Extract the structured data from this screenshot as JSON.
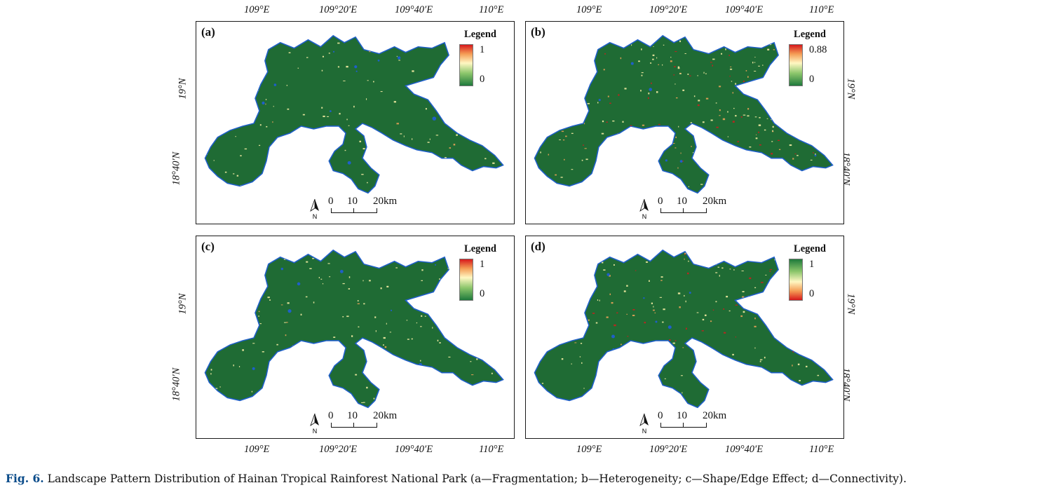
{
  "caption": {
    "label": "Fig. 6.",
    "text": "Landscape Pattern Distribution of Hainan Tropical Rainforest National Park (a—Fragmentation; b—Heterogeneity; c—Shape/Edge Effect; d—Connectivity)."
  },
  "axes": {
    "lon_ticks": [
      "109°E",
      "109°20′E",
      "109°40′E",
      "110°E"
    ],
    "lat_ticks": [
      "19°N",
      "18°40′N"
    ]
  },
  "scale_bar": {
    "labels": [
      "0",
      "10",
      "20km"
    ],
    "north_label": "N"
  },
  "colors": {
    "forest": "#1f6b34",
    "patch_high": "#d7191c",
    "patch_mid": "#fff2a8",
    "water": "#1f5fc9"
  },
  "panels": [
    {
      "id": "a",
      "label": "(a)",
      "legend_title": "Legend",
      "legend_max": "1",
      "legend_min": "0",
      "gradient": "up"
    },
    {
      "id": "b",
      "label": "(b)",
      "legend_title": "Legend",
      "legend_max": "0.88",
      "legend_min": "0",
      "gradient": "up"
    },
    {
      "id": "c",
      "label": "(c)",
      "legend_title": "Legend",
      "legend_max": "1",
      "legend_min": "0",
      "gradient": "up"
    },
    {
      "id": "d",
      "label": "(d)",
      "legend_title": "Legend",
      "legend_max": "1",
      "legend_min": "0",
      "gradient": "down"
    }
  ]
}
